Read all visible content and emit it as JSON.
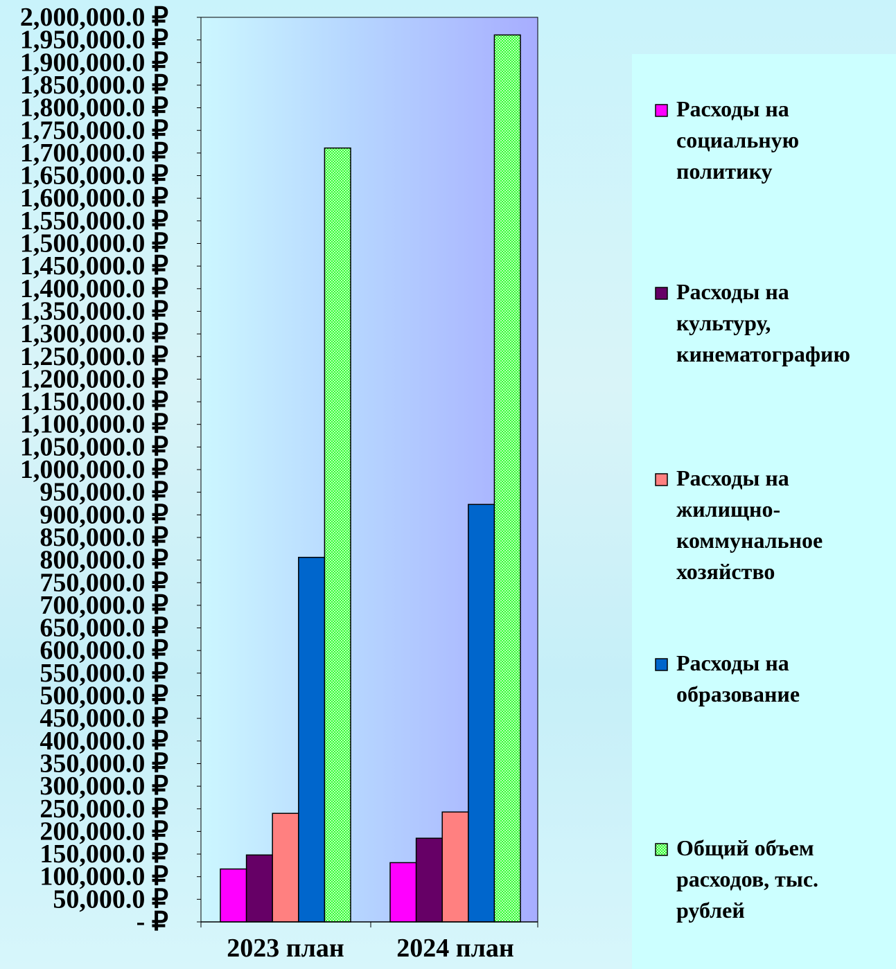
{
  "chart_data": {
    "type": "bar",
    "categories": [
      "2023 план",
      "2024 план"
    ],
    "series": [
      {
        "name": "Расходы на социальную политику",
        "values": [
          117000,
          131000
        ],
        "color": "#ff00ff",
        "pattern": "solid"
      },
      {
        "name": "Расходы на культуру, кинематографию",
        "values": [
          148000,
          185000
        ],
        "color": "#660066",
        "pattern": "solid"
      },
      {
        "name": "Расходы на жилищно-коммунальное хозяйство",
        "values": [
          240000,
          243000
        ],
        "color": "#ff8080",
        "pattern": "solid"
      },
      {
        "name": "Расходы на образование",
        "values": [
          806000,
          923000
        ],
        "color": "#0066cc",
        "pattern": "solid"
      },
      {
        "name": "Общий объем расходов, тыс. рублей",
        "values": [
          1711000,
          1961000
        ],
        "color": "#33ff33",
        "pattern": "checker"
      }
    ],
    "ylim": [
      0,
      2000000
    ],
    "ytick_step": 50000,
    "ytick_labels": [
      "- ₽",
      "50,000.0 ₽",
      "100,000.0 ₽",
      "150,000.0 ₽",
      "200,000.0 ₽",
      "250,000.0 ₽",
      "300,000.0 ₽",
      "350,000.0 ₽",
      "400,000.0 ₽",
      "450,000.0 ₽",
      "500,000.0 ₽",
      "550,000.0 ₽",
      "600,000.0 ₽",
      "650,000.0 ₽",
      "700,000.0 ₽",
      "750,000.0 ₽",
      "800,000.0 ₽",
      "850,000.0 ₽",
      "900,000.0 ₽",
      "950,000.0 ₽",
      "1,000,000.0 ₽",
      "1,050,000.0 ₽",
      "1,100,000.0 ₽",
      "1,150,000.0 ₽",
      "1,200,000.0 ₽",
      "1,250,000.0 ₽",
      "1,300,000.0 ₽",
      "1,350,000.0 ₽",
      "1,400,000.0 ₽",
      "1,450,000.0 ₽",
      "1,500,000.0 ₽",
      "1,550,000.0 ₽",
      "1,600,000.0 ₽",
      "1,650,000.0 ₽",
      "1,700,000.0 ₽",
      "1,750,000.0 ₽",
      "1,800,000.0 ₽",
      "1,850,000.0 ₽",
      "1,900,000.0 ₽",
      "1,950,000.0 ₽",
      "2,000,000.0 ₽"
    ],
    "legend_position": "right",
    "legend_lines": [
      [
        "Расходы на",
        "социальную",
        "политику"
      ],
      [
        "Расходы на",
        "культуру,",
        "кинематографию"
      ],
      [
        "Расходы на",
        "жилищно-",
        "коммунальное",
        "хозяйство"
      ],
      [
        "Расходы на",
        "образование"
      ],
      [
        "Общий объем",
        "расходов, тыс.",
        "рублей"
      ]
    ],
    "grid": false,
    "plot_background": [
      "#ccf7ff",
      "#a7adff"
    ],
    "legend_background": "#ccffff"
  }
}
